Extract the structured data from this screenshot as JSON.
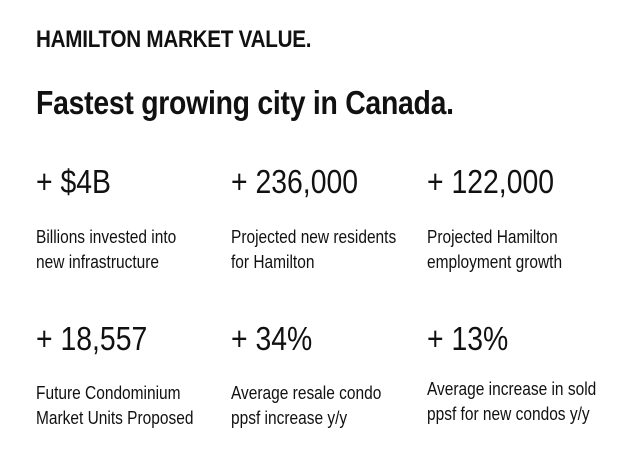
{
  "header": {
    "title": "HAMILTON MARKET VALUE.",
    "subtitle": "Fastest growing city in Canada."
  },
  "stats": [
    {
      "value": "+ $4B",
      "description": "Billions invested into new infrastructure"
    },
    {
      "value": "+ 236,000",
      "description": "Projected new residents for Hamilton"
    },
    {
      "value": "+ 122,000",
      "description": "Projected Hamilton employment growth"
    },
    {
      "value": "+ 18,557",
      "description": "Future Condominium Market Units Proposed"
    },
    {
      "value": "+ 34%",
      "description": "Average resale condo ppsf increase y/y"
    },
    {
      "value": "+ 13%",
      "description": "Average increase in sold ppsf for new condos y/y"
    }
  ]
}
